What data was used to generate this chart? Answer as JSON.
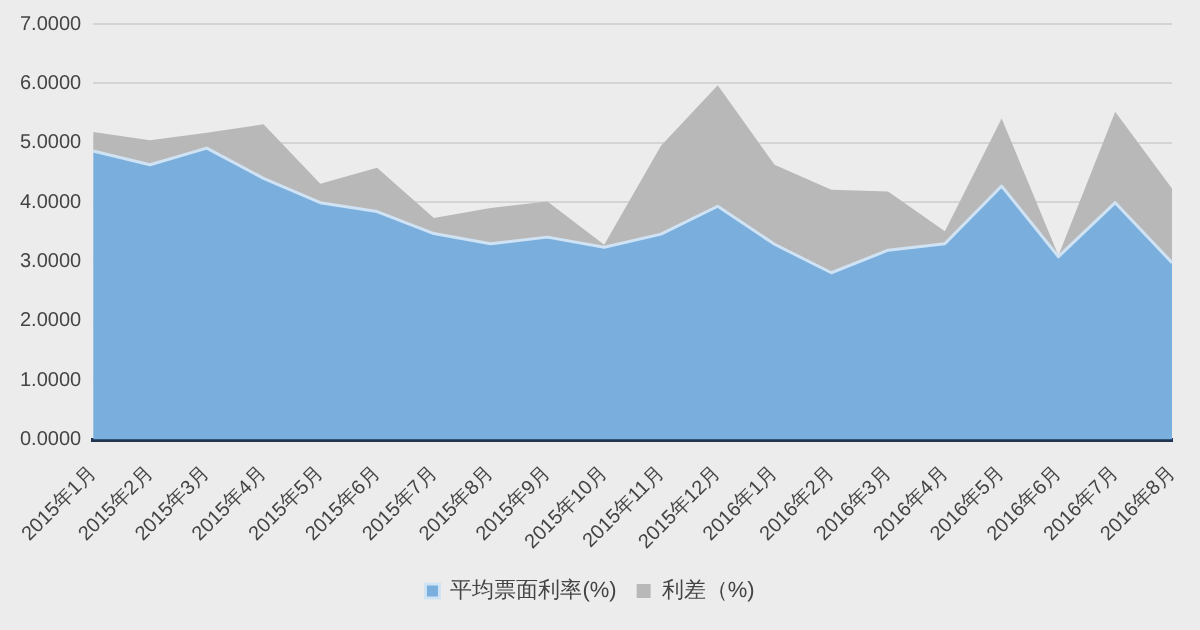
{
  "chart_data": {
    "type": "area",
    "stacked": true,
    "categories": [
      "2015年1月",
      "2015年2月",
      "2015年3月",
      "2015年4月",
      "2015年5月",
      "2015年6月",
      "2015年7月",
      "2015年8月",
      "2015年9月",
      "2015年10月",
      "2015年11月",
      "2015年12月",
      "2016年1月",
      "2016年2月",
      "2016年3月",
      "2016年4月",
      "2016年5月",
      "2016年6月",
      "2016年7月",
      "2016年8月"
    ],
    "series": [
      {
        "name": "平均票面利率(%)",
        "color": "#7aaedd",
        "values": [
          4.86,
          4.63,
          4.91,
          4.4,
          3.99,
          3.84,
          3.47,
          3.3,
          3.41,
          3.24,
          3.46,
          3.93,
          3.29,
          2.81,
          3.19,
          3.3,
          4.27,
          3.08,
          3.99,
          2.98
        ]
      },
      {
        "name": "利差（%)",
        "color": "#b8b8b8",
        "values": [
          0.32,
          0.41,
          0.26,
          0.91,
          0.32,
          0.74,
          0.26,
          0.6,
          0.6,
          0.04,
          1.49,
          2.04,
          1.34,
          1.4,
          0.99,
          0.21,
          1.14,
          0.02,
          1.53,
          1.25
        ]
      }
    ],
    "ylim": [
      0,
      7
    ],
    "yticks": [
      {
        "value": 0,
        "label": "0.0000"
      },
      {
        "value": 1,
        "label": "1.0000"
      },
      {
        "value": 2,
        "label": "2.0000"
      },
      {
        "value": 3,
        "label": "3.0000"
      },
      {
        "value": 4,
        "label": "4.0000"
      },
      {
        "value": 5,
        "label": "5.0000"
      },
      {
        "value": 6,
        "label": "6.0000"
      },
      {
        "value": 7,
        "label": "7.0000"
      }
    ],
    "grid": "y",
    "legend": "bottom"
  }
}
